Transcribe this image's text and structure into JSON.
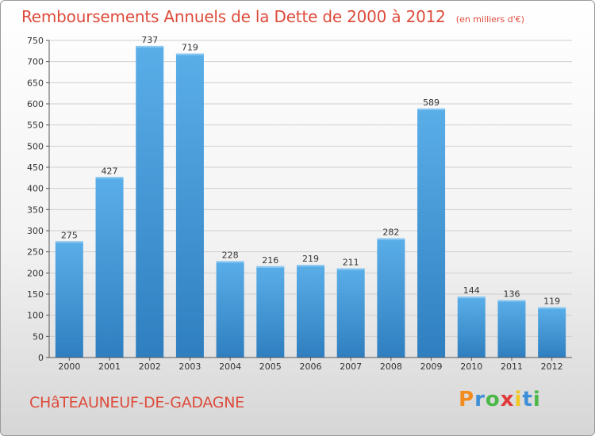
{
  "header": {
    "title": "Remboursements Annuels de la Dette de 2000 à 2012",
    "unit": "(en milliers d'€)"
  },
  "footer": {
    "commune": "CHâTEAUNEUF-DE-GADAGNE",
    "brand": "Proxiti",
    "brand_colors": [
      "#f28c1e",
      "#3f8fd8",
      "#4cb848",
      "#e03a3a",
      "#f2c71e",
      "#3f8fd8",
      "#4cb848"
    ]
  },
  "colors": {
    "title": "#dd4c3c",
    "bar_top": "#5aaee8",
    "bar_bottom": "#2f7fc0",
    "grid": "#cfcfcf",
    "axis": "#555555"
  },
  "chart_data": {
    "type": "bar",
    "title": "Remboursements Annuels de la Dette de 2000 à 2012",
    "subtitle": "(en milliers d'€)",
    "xlabel": "",
    "ylabel": "",
    "categories": [
      "2000",
      "2001",
      "2002",
      "2003",
      "2004",
      "2005",
      "2006",
      "2007",
      "2008",
      "2009",
      "2010",
      "2011",
      "2012"
    ],
    "values": [
      275,
      427,
      737,
      719,
      228,
      216,
      219,
      211,
      282,
      589,
      144,
      136,
      119
    ],
    "ylim": [
      0,
      750
    ],
    "yticks": [
      0,
      50,
      100,
      150,
      200,
      250,
      300,
      350,
      400,
      450,
      500,
      550,
      600,
      650,
      700,
      750
    ],
    "grid": true,
    "data_labels": true
  }
}
